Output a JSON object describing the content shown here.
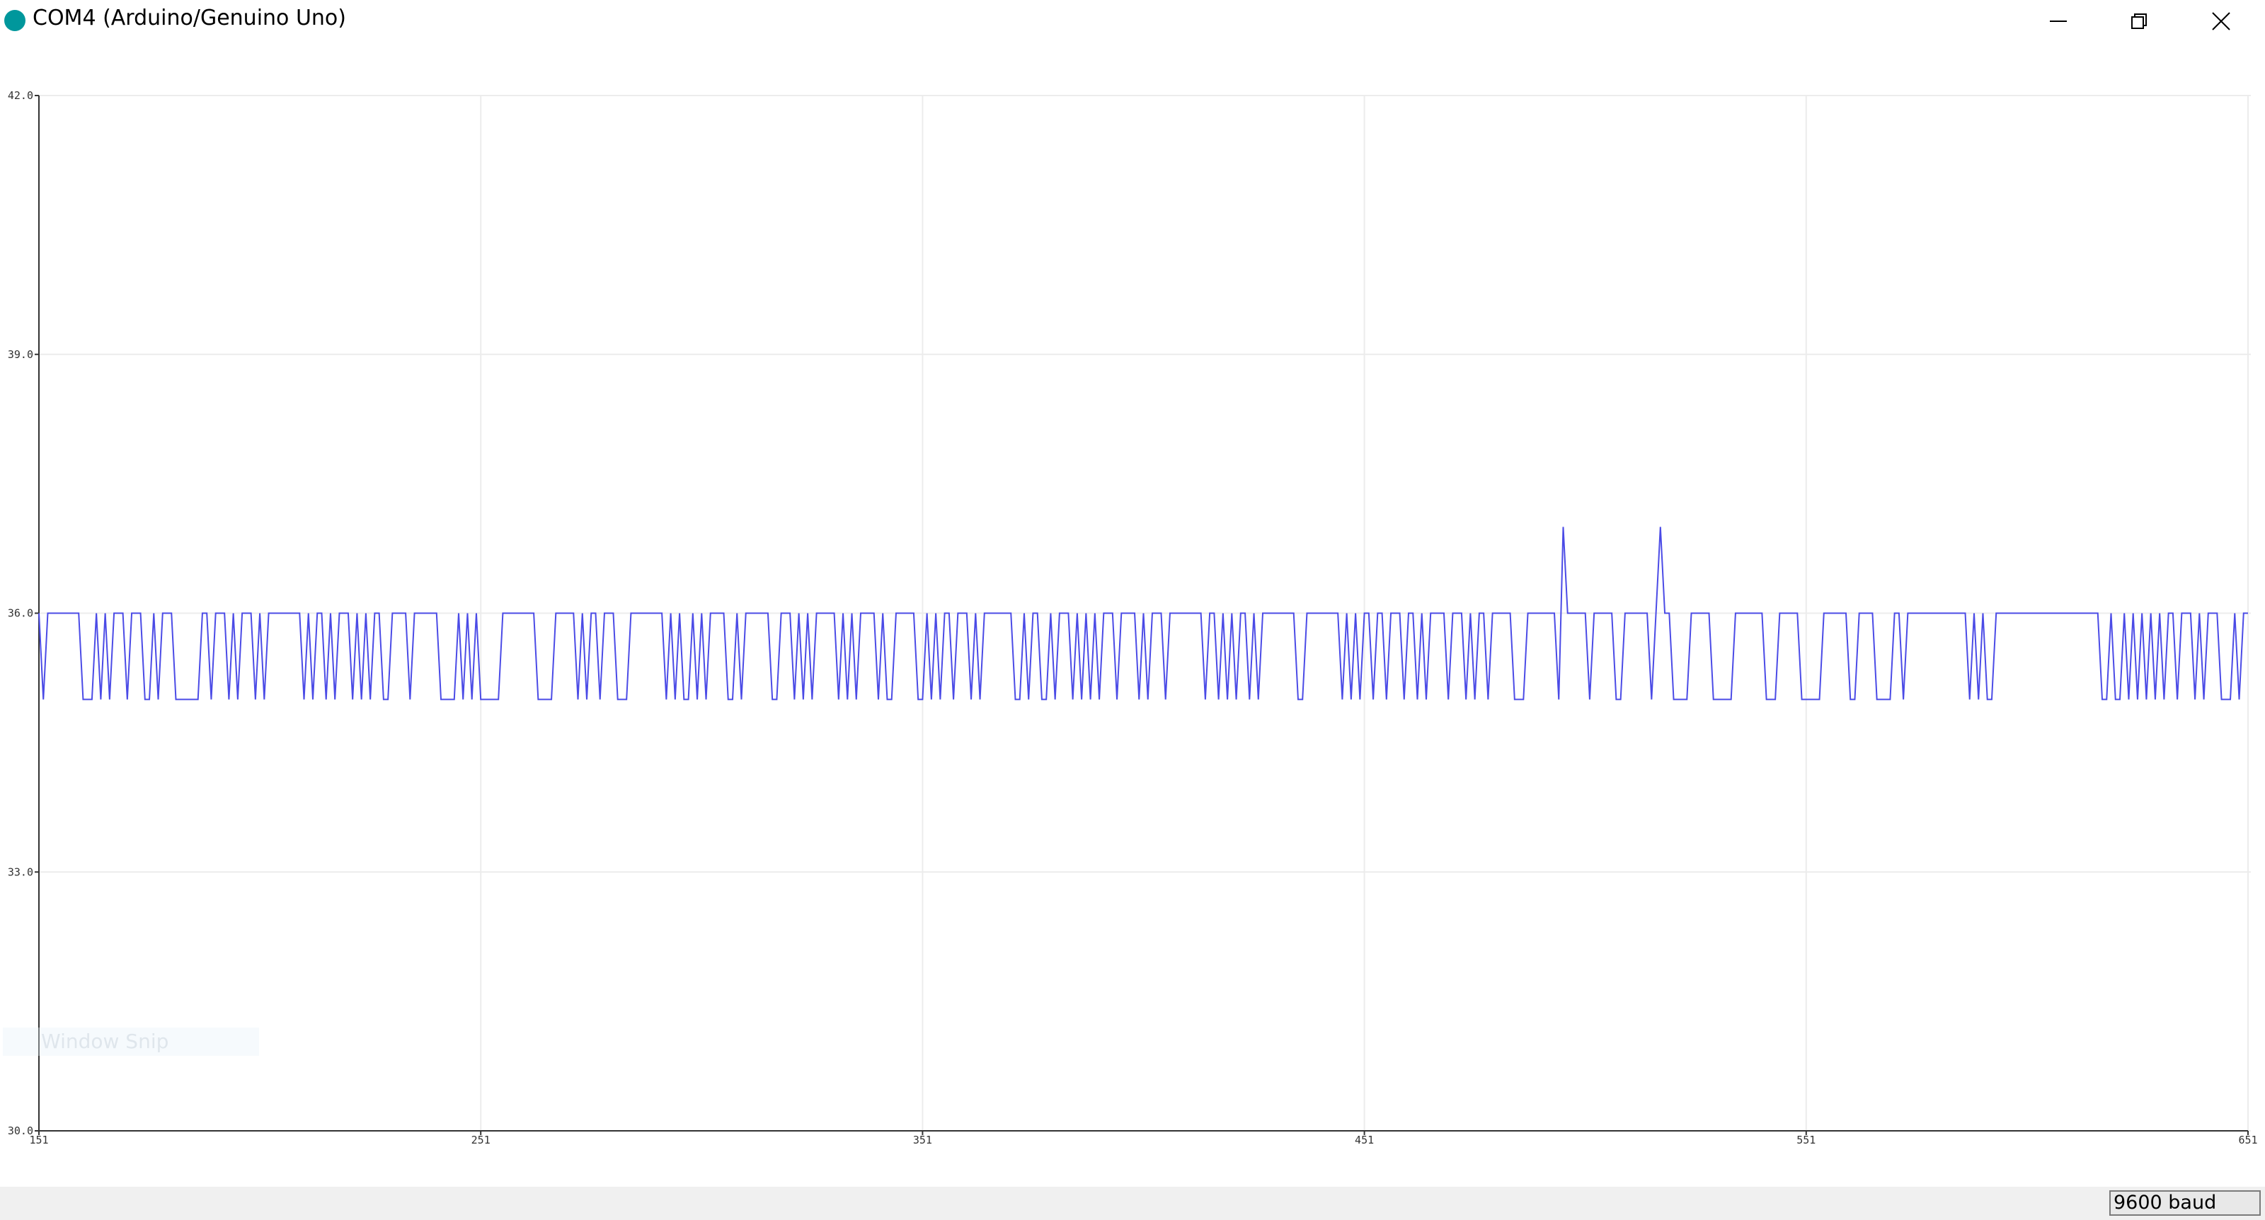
{
  "window": {
    "title": "COM4 (Arduino/Genuino Uno)",
    "overlay_text": "Window Snip"
  },
  "footer": {
    "baud": "9600 baud"
  },
  "chart_data": {
    "type": "line",
    "x": [
      151,
      152,
      153,
      154,
      155,
      156,
      157,
      158,
      159,
      160,
      161,
      162,
      163,
      164,
      165,
      166,
      167,
      168,
      169,
      170,
      171,
      172,
      173,
      174,
      175,
      176,
      177,
      178,
      179,
      180,
      181,
      182,
      183,
      184,
      185,
      186,
      187,
      188,
      189,
      190,
      191,
      192,
      193,
      194,
      195,
      196,
      197,
      198,
      199,
      200,
      201,
      202,
      203,
      204,
      205,
      206,
      207,
      208,
      209,
      210,
      211,
      212,
      213,
      214,
      215,
      216,
      217,
      218,
      219,
      220,
      221,
      222,
      223,
      224,
      225,
      226,
      227,
      228,
      229,
      230,
      231,
      232,
      233,
      234,
      235,
      236,
      237,
      238,
      239,
      240,
      241,
      242,
      243,
      244,
      245,
      246,
      247,
      248,
      249,
      250,
      251,
      252,
      253,
      254,
      255,
      256,
      257,
      258,
      259,
      260,
      261,
      262,
      263,
      264,
      265,
      266,
      267,
      268,
      269,
      270,
      271,
      272,
      273,
      274,
      275,
      276,
      277,
      278,
      279,
      280,
      281,
      282,
      283,
      284,
      285,
      286,
      287,
      288,
      289,
      290,
      291,
      292,
      293,
      294,
      295,
      296,
      297,
      298,
      299,
      300,
      301,
      302,
      303,
      304,
      305,
      306,
      307,
      308,
      309,
      310,
      311,
      312,
      313,
      314,
      315,
      316,
      317,
      318,
      319,
      320,
      321,
      322,
      323,
      324,
      325,
      326,
      327,
      328,
      329,
      330,
      331,
      332,
      333,
      334,
      335,
      336,
      337,
      338,
      339,
      340,
      341,
      342,
      343,
      344,
      345,
      346,
      347,
      348,
      349,
      350,
      351,
      352,
      353,
      354,
      355,
      356,
      357,
      358,
      359,
      360,
      361,
      362,
      363,
      364,
      365,
      366,
      367,
      368,
      369,
      370,
      371,
      372,
      373,
      374,
      375,
      376,
      377,
      378,
      379,
      380,
      381,
      382,
      383,
      384,
      385,
      386,
      387,
      388,
      389,
      390,
      391,
      392,
      393,
      394,
      395,
      396,
      397,
      398,
      399,
      400,
      401,
      402,
      403,
      404,
      405,
      406,
      407,
      408,
      409,
      410,
      411,
      412,
      413,
      414,
      415,
      416,
      417,
      418,
      419,
      420,
      421,
      422,
      423,
      424,
      425,
      426,
      427,
      428,
      429,
      430,
      431,
      432,
      433,
      434,
      435,
      436,
      437,
      438,
      439,
      440,
      441,
      442,
      443,
      444,
      445,
      446,
      447,
      448,
      449,
      450,
      451,
      452,
      453,
      454,
      455,
      456,
      457,
      458,
      459,
      460,
      461,
      462,
      463,
      464,
      465,
      466,
      467,
      468,
      469,
      470,
      471,
      472,
      473,
      474,
      475,
      476,
      477,
      478,
      479,
      480,
      481,
      482,
      483,
      484,
      485,
      486,
      487,
      488,
      489,
      490,
      491,
      492,
      493,
      494,
      495,
      496,
      497,
      498,
      499,
      500,
      501,
      502,
      503,
      504,
      505,
      506,
      507,
      508,
      509,
      510,
      511,
      512,
      513,
      514,
      515,
      516,
      517,
      518,
      519,
      520,
      521,
      522,
      523,
      524,
      525,
      526,
      527,
      528,
      529,
      530,
      531,
      532,
      533,
      534,
      535,
      536,
      537,
      538,
      539,
      540,
      541,
      542,
      543,
      544,
      545,
      546,
      547,
      548,
      549,
      550,
      551,
      552,
      553,
      554,
      555,
      556,
      557,
      558,
      559,
      560,
      561,
      562,
      563,
      564,
      565,
      566,
      567,
      568,
      569,
      570,
      571,
      572,
      573,
      574,
      575,
      576,
      577,
      578,
      579,
      580,
      581,
      582,
      583,
      584,
      585,
      586,
      587,
      588,
      589,
      590,
      591,
      592,
      593,
      594,
      595,
      596,
      597,
      598,
      599,
      600,
      601,
      602,
      603,
      604,
      605,
      606,
      607,
      608,
      609,
      610,
      611,
      612,
      613,
      614,
      615,
      616,
      617,
      618,
      619,
      620,
      621,
      622,
      623,
      624,
      625,
      626,
      627,
      628,
      629,
      630,
      631,
      632,
      633,
      634,
      635,
      636,
      637,
      638,
      639,
      640,
      641,
      642,
      643,
      644,
      645,
      646,
      647,
      648,
      649,
      650,
      651
    ],
    "series": [
      {
        "color": "#4b4be6",
        "values": [
          36,
          35,
          36,
          36,
          36,
          36,
          36,
          36,
          36,
          36,
          35,
          35,
          35,
          36,
          35,
          36,
          35,
          36,
          36,
          36,
          35,
          36,
          36,
          36,
          35,
          35,
          36,
          35,
          36,
          36,
          36,
          35,
          35,
          35,
          35,
          35,
          35,
          36,
          36,
          35,
          36,
          36,
          36,
          35,
          36,
          35,
          36,
          36,
          36,
          35,
          36,
          35,
          36,
          36,
          36,
          36,
          36,
          36,
          36,
          36,
          35,
          36,
          35,
          36,
          36,
          35,
          36,
          35,
          36,
          36,
          36,
          35,
          36,
          35,
          36,
          35,
          36,
          36,
          35,
          35,
          36,
          36,
          36,
          36,
          35,
          36,
          36,
          36,
          36,
          36,
          36,
          35,
          35,
          35,
          35,
          36,
          35,
          36,
          35,
          36,
          35,
          35,
          35,
          35,
          35,
          36,
          36,
          36,
          36,
          36,
          36,
          36,
          36,
          35,
          35,
          35,
          35,
          36,
          36,
          36,
          36,
          36,
          35,
          36,
          35,
          36,
          36,
          35,
          36,
          36,
          36,
          35,
          35,
          35,
          36,
          36,
          36,
          36,
          36,
          36,
          36,
          36,
          35,
          36,
          35,
          36,
          35,
          35,
          36,
          35,
          36,
          35,
          36,
          36,
          36,
          36,
          35,
          35,
          36,
          35,
          36,
          36,
          36,
          36,
          36,
          36,
          35,
          35,
          36,
          36,
          36,
          35,
          36,
          35,
          36,
          35,
          36,
          36,
          36,
          36,
          36,
          35,
          36,
          35,
          36,
          35,
          36,
          36,
          36,
          36,
          35,
          36,
          35,
          35,
          36,
          36,
          36,
          36,
          36,
          35,
          35,
          36,
          35,
          36,
          35,
          36,
          36,
          35,
          36,
          36,
          36,
          35,
          36,
          35,
          36,
          36,
          36,
          36,
          36,
          36,
          36,
          35,
          35,
          36,
          35,
          36,
          36,
          35,
          35,
          36,
          35,
          36,
          36,
          36,
          35,
          36,
          35,
          36,
          35,
          36,
          35,
          36,
          36,
          36,
          35,
          36,
          36,
          36,
          36,
          35,
          36,
          35,
          36,
          36,
          36,
          35,
          36,
          36,
          36,
          36,
          36,
          36,
          36,
          36,
          35,
          36,
          36,
          35,
          36,
          35,
          36,
          35,
          36,
          36,
          35,
          36,
          35,
          36,
          36,
          36,
          36,
          36,
          36,
          36,
          36,
          35,
          35,
          36,
          36,
          36,
          36,
          36,
          36,
          36,
          36,
          35,
          36,
          35,
          36,
          35,
          36,
          36,
          35,
          36,
          36,
          35,
          36,
          36,
          36,
          35,
          36,
          36,
          35,
          36,
          35,
          36,
          36,
          36,
          36,
          35,
          36,
          36,
          36,
          35,
          36,
          35,
          36,
          36,
          35,
          36,
          36,
          36,
          36,
          36,
          35,
          35,
          35,
          36,
          36,
          36,
          36,
          36,
          36,
          36,
          35,
          37,
          36,
          36,
          36,
          36,
          36,
          35,
          36,
          36,
          36,
          36,
          36,
          35,
          35,
          36,
          36,
          36,
          36,
          36,
          36,
          35,
          36,
          37,
          36,
          36,
          35,
          35,
          35,
          35,
          36,
          36,
          36,
          36,
          36,
          35,
          35,
          35,
          35,
          35,
          36,
          36,
          36,
          36,
          36,
          36,
          36,
          35,
          35,
          35,
          36,
          36,
          36,
          36,
          36,
          35,
          35,
          35,
          35,
          35,
          36,
          36,
          36,
          36,
          36,
          36,
          35,
          35,
          36,
          36,
          36,
          36,
          35,
          35,
          35,
          35,
          36,
          36,
          35,
          36,
          36,
          36,
          36,
          36,
          36,
          36,
          36,
          36,
          36,
          36,
          36,
          36,
          36,
          35,
          36,
          35,
          36,
          35,
          35,
          36,
          36,
          36,
          36,
          36,
          36,
          36,
          36,
          36,
          36,
          36,
          36,
          36,
          36,
          36,
          36,
          36,
          36,
          36,
          36,
          36,
          36,
          36,
          36,
          35,
          35,
          36,
          35,
          35,
          36,
          35,
          36,
          35,
          36,
          35,
          36,
          35,
          36,
          35,
          36,
          36,
          35,
          36,
          36,
          36,
          35,
          36,
          35,
          36,
          36,
          36,
          35,
          35,
          35,
          36,
          35,
          36,
          36
        ]
      }
    ],
    "xlim": [
      151,
      651
    ],
    "xticks": [
      151,
      251,
      351,
      451,
      551,
      651
    ],
    "ylim": [
      30,
      42
    ],
    "yticks": [
      {
        "value": 30,
        "label": "30.0"
      },
      {
        "value": 33,
        "label": "33.0"
      },
      {
        "value": 36,
        "label": "36.0"
      },
      {
        "value": 39,
        "label": "39.0"
      },
      {
        "value": 42,
        "label": "42.0"
      }
    ],
    "grid": true
  }
}
